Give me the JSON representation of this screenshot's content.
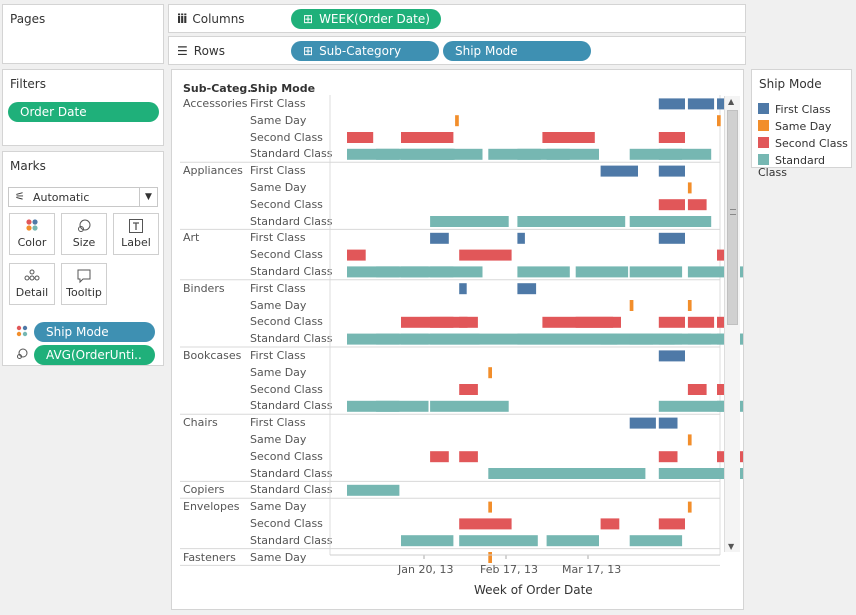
{
  "pages": {
    "title": "Pages"
  },
  "columns_shelf": {
    "label": "Columns",
    "icon": "columns-icon",
    "pill": "WEEK(Order Date)"
  },
  "rows_shelf": {
    "label": "Rows",
    "icon": "rows-icon",
    "pills": [
      "Sub-Category",
      "Ship Mode"
    ]
  },
  "filters": {
    "title": "Filters",
    "pills": [
      "Order Date"
    ]
  },
  "marks": {
    "title": "Marks",
    "mark_type": "Automatic",
    "buttons": [
      {
        "label": "Color",
        "icon": "color-icon"
      },
      {
        "label": "Size",
        "icon": "size-icon"
      },
      {
        "label": "Label",
        "icon": "label-icon"
      },
      {
        "label": "Detail",
        "icon": "detail-icon"
      },
      {
        "label": "Tooltip",
        "icon": "tooltip-icon"
      }
    ],
    "fields": [
      {
        "label": "Ship Mode",
        "icon": "color-dots-icon"
      },
      {
        "label": "AVG(OrderUnti..",
        "icon": "size-shape-icon"
      }
    ]
  },
  "legend": {
    "title": "Ship Mode",
    "items": [
      {
        "label": "First Class",
        "color": "#4e79a7"
      },
      {
        "label": "Same Day",
        "color": "#f28e2b"
      },
      {
        "label": "Second Class",
        "color": "#e15759"
      },
      {
        "label": "Standard Class",
        "color": "#76b7b2"
      }
    ]
  },
  "view": {
    "headers": {
      "subcategory": "Sub-Categ..",
      "shipmode": "Ship Mode"
    },
    "x_axis_title": "Week of Order Date"
  },
  "chart_data": {
    "type": "gantt",
    "x_ticks": [
      "Jan 20, 13",
      "Feb 17, 13",
      "Mar 17, 13"
    ],
    "xlabel": "Week of Order Date",
    "x_domain": [
      "2013-01-01",
      "2013-03-31"
    ],
    "groups": [
      {
        "name": "Accessories",
        "rows": [
          {
            "mode": "First Class",
            "marks": [
              [
                "2013-03-17",
                7
              ],
              [
                "2013-03-24",
                7
              ],
              [
                "2013-03-31",
                3
              ]
            ]
          },
          {
            "mode": "Same Day",
            "marks": [
              [
                "2013-01-27",
                1
              ],
              [
                "2013-03-31",
                1
              ]
            ]
          },
          {
            "mode": "Second Class",
            "marks": [
              [
                "2013-01-01",
                7
              ],
              [
                "2013-01-14",
                14
              ],
              [
                "2013-02-17",
                14
              ],
              [
                "2013-03-17",
                7
              ]
            ]
          },
          {
            "mode": "Standard Class",
            "marks": [
              [
                "2013-01-01",
                14
              ],
              [
                "2013-01-08",
                21
              ],
              [
                "2013-01-14",
                14
              ],
              [
                "2013-01-21",
                14
              ],
              [
                "2013-02-04",
                14
              ],
              [
                "2013-02-11",
                14
              ],
              [
                "2013-02-18",
                14
              ],
              [
                "2013-03-10",
                14
              ],
              [
                "2013-03-17",
                14
              ]
            ]
          }
        ]
      },
      {
        "name": "Appliances",
        "rows": [
          {
            "mode": "First Class",
            "marks": [
              [
                "2013-03-03",
                10
              ],
              [
                "2013-03-17",
                7
              ]
            ]
          },
          {
            "mode": "Same Day",
            "marks": [
              [
                "2013-03-24",
                1
              ]
            ]
          },
          {
            "mode": "Second Class",
            "marks": [
              [
                "2013-03-17",
                7
              ],
              [
                "2013-03-24",
                5
              ]
            ]
          },
          {
            "mode": "Standard Class",
            "marks": [
              [
                "2013-01-21",
                21
              ],
              [
                "2013-02-11",
                14
              ],
              [
                "2013-02-18",
                21
              ],
              [
                "2013-03-10",
                14
              ],
              [
                "2013-03-17",
                14
              ]
            ]
          }
        ]
      },
      {
        "name": "Art",
        "rows": [
          {
            "mode": "First Class",
            "marks": [
              [
                "2013-01-21",
                5
              ],
              [
                "2013-02-11",
                2
              ],
              [
                "2013-03-17",
                7
              ]
            ]
          },
          {
            "mode": "Second Class",
            "marks": [
              [
                "2013-01-01",
                5
              ],
              [
                "2013-01-28",
                14
              ],
              [
                "2013-03-31",
                5
              ]
            ]
          },
          {
            "mode": "Standard Class",
            "marks": [
              [
                "2013-01-01",
                14
              ],
              [
                "2013-01-08",
                14
              ],
              [
                "2013-01-14",
                14
              ],
              [
                "2013-01-21",
                14
              ],
              [
                "2013-02-11",
                14
              ],
              [
                "2013-02-25",
                14
              ],
              [
                "2013-03-10",
                14
              ],
              [
                "2013-03-24",
                21
              ]
            ]
          }
        ]
      },
      {
        "name": "Binders",
        "rows": [
          {
            "mode": "First Class",
            "marks": [
              [
                "2013-01-28",
                2
              ],
              [
                "2013-02-11",
                5
              ]
            ]
          },
          {
            "mode": "Same Day",
            "marks": [
              [
                "2013-03-10",
                1
              ],
              [
                "2013-03-24",
                1
              ]
            ]
          },
          {
            "mode": "Second Class",
            "marks": [
              [
                "2013-01-14",
                14
              ],
              [
                "2013-01-21",
                10
              ],
              [
                "2013-01-28",
                5
              ],
              [
                "2013-02-17",
                21
              ],
              [
                "2013-02-25",
                10
              ],
              [
                "2013-03-17",
                7
              ],
              [
                "2013-03-24",
                7
              ],
              [
                "2013-03-31",
                5
              ]
            ]
          },
          {
            "mode": "Standard Class",
            "marks": [
              [
                "2013-01-01",
                14
              ],
              [
                "2013-01-08",
                14
              ],
              [
                "2013-01-14",
                21
              ],
              [
                "2013-01-21",
                50
              ],
              [
                "2013-02-11",
                42
              ],
              [
                "2013-03-03",
                14
              ],
              [
                "2013-03-10",
                14
              ],
              [
                "2013-03-17",
                14
              ],
              [
                "2013-03-24",
                21
              ],
              [
                "2013-03-31",
                14
              ]
            ]
          }
        ]
      },
      {
        "name": "Bookcases",
        "rows": [
          {
            "mode": "First Class",
            "marks": [
              [
                "2013-03-17",
                7
              ]
            ]
          },
          {
            "mode": "Same Day",
            "marks": [
              [
                "2013-02-04",
                1
              ]
            ]
          },
          {
            "mode": "Second Class",
            "marks": [
              [
                "2013-01-28",
                5
              ],
              [
                "2013-03-24",
                5
              ],
              [
                "2013-03-31",
                5
              ]
            ]
          },
          {
            "mode": "Standard Class",
            "marks": [
              [
                "2013-01-01",
                14
              ],
              [
                "2013-01-08",
                14
              ],
              [
                "2013-01-21",
                21
              ],
              [
                "2013-03-17",
                21
              ],
              [
                "2013-03-31",
                14
              ]
            ]
          }
        ]
      },
      {
        "name": "Chairs",
        "rows": [
          {
            "mode": "First Class",
            "marks": [
              [
                "2013-03-10",
                7
              ],
              [
                "2013-03-17",
                5
              ]
            ]
          },
          {
            "mode": "Same Day",
            "marks": [
              [
                "2013-03-24",
                1
              ]
            ]
          },
          {
            "mode": "Second Class",
            "marks": [
              [
                "2013-01-21",
                5
              ],
              [
                "2013-01-28",
                5
              ],
              [
                "2013-03-17",
                5
              ],
              [
                "2013-03-31",
                14
              ]
            ]
          },
          {
            "mode": "Standard Class",
            "marks": [
              [
                "2013-02-04",
                42
              ],
              [
                "2013-03-17",
                14
              ],
              [
                "2013-03-24",
                28
              ]
            ]
          }
        ]
      },
      {
        "name": "Copiers",
        "rows": [
          {
            "mode": "Standard Class",
            "marks": [
              [
                "2013-01-01",
                14
              ]
            ]
          }
        ]
      },
      {
        "name": "Envelopes",
        "rows": [
          {
            "mode": "Same Day",
            "marks": [
              [
                "2013-02-04",
                1
              ],
              [
                "2013-03-24",
                1
              ]
            ]
          },
          {
            "mode": "Second Class",
            "marks": [
              [
                "2013-01-28",
                14
              ],
              [
                "2013-03-03",
                5
              ],
              [
                "2013-03-17",
                7
              ]
            ]
          },
          {
            "mode": "Standard Class",
            "marks": [
              [
                "2013-01-14",
                14
              ],
              [
                "2013-01-28",
                21
              ],
              [
                "2013-02-18",
                14
              ],
              [
                "2013-03-10",
                14
              ]
            ]
          }
        ]
      },
      {
        "name": "Fasteners",
        "rows": [
          {
            "mode": "Same Day",
            "marks": [
              [
                "2013-02-04",
                1
              ]
            ]
          }
        ]
      }
    ]
  }
}
